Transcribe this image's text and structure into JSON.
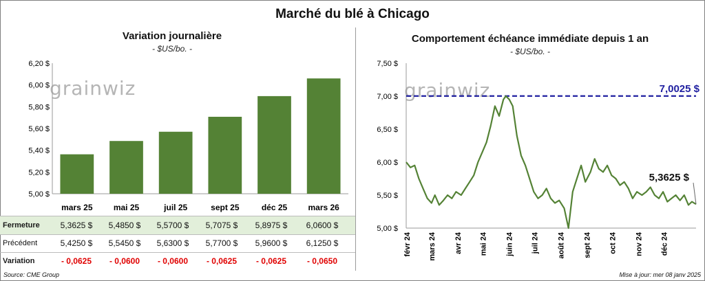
{
  "title": "Marché du blé à Chicago",
  "watermark": "grainwiz",
  "left_chart": {
    "title": "Variation journalière",
    "unit": "- $US/bo. -"
  },
  "right_chart": {
    "title": "Comportement échéance immédiate depuis 1 an",
    "unit": "- $US/bo. -",
    "max_label": "7,0025 $",
    "last_label": "5,3625 $"
  },
  "table": {
    "rows": [
      {
        "label": "Fermeture",
        "values": [
          "5,3625  $",
          "5,4850  $",
          "5,5700  $",
          "5,7075  $",
          "5,8975  $",
          "6,0600  $"
        ]
      },
      {
        "label": "Précédent",
        "values": [
          "5,4250  $",
          "5,5450  $",
          "5,6300  $",
          "5,7700  $",
          "5,9600  $",
          "6,1250  $"
        ]
      },
      {
        "label": "Variation",
        "values": [
          "- 0,0625",
          "- 0,0600",
          "- 0,0600",
          "- 0,0625",
          "- 0,0625",
          "- 0,0650"
        ]
      }
    ]
  },
  "footer": {
    "source": "Source: CME Group",
    "updated": "Mise à jour: mer 08 janv 2025"
  },
  "colors": {
    "bar": "#548235",
    "line": "#548235",
    "max_line": "#1f1fa0",
    "max_label": "#1f1fa0",
    "highlight_row": "#e2efda",
    "negative": "#e00000"
  },
  "chart_data": [
    {
      "type": "bar",
      "categories": [
        "mars 25",
        "mai 25",
        "juil 25",
        "sept 25",
        "déc 25",
        "mars 26"
      ],
      "values": [
        5.3625,
        5.485,
        5.57,
        5.7075,
        5.8975,
        6.06
      ],
      "ylim": [
        5.0,
        6.2
      ],
      "ytick_labels": [
        "5,00 $",
        "5,20 $",
        "5,40 $",
        "5,60 $",
        "5,80 $",
        "6,00 $",
        "6,20 $"
      ],
      "grid": false
    },
    {
      "type": "line",
      "x": [
        "2024-01-31",
        "2024-02-05",
        "2024-02-10",
        "2024-02-15",
        "2024-02-20",
        "2024-02-25",
        "2024-03-01",
        "2024-03-05",
        "2024-03-10",
        "2024-03-15",
        "2024-03-20",
        "2024-03-25",
        "2024-03-30",
        "2024-04-05",
        "2024-04-10",
        "2024-04-15",
        "2024-04-20",
        "2024-04-25",
        "2024-04-30",
        "2024-05-05",
        "2024-05-10",
        "2024-05-15",
        "2024-05-20",
        "2024-05-25",
        "2024-05-28",
        "2024-06-01",
        "2024-06-05",
        "2024-06-10",
        "2024-06-15",
        "2024-06-20",
        "2024-06-25",
        "2024-06-30",
        "2024-07-05",
        "2024-07-10",
        "2024-07-15",
        "2024-07-20",
        "2024-07-25",
        "2024-07-30",
        "2024-08-05",
        "2024-08-10",
        "2024-08-15",
        "2024-08-20",
        "2024-08-25",
        "2024-08-30",
        "2024-09-05",
        "2024-09-10",
        "2024-09-15",
        "2024-09-20",
        "2024-09-25",
        "2024-09-30",
        "2024-10-05",
        "2024-10-10",
        "2024-10-15",
        "2024-10-20",
        "2024-10-25",
        "2024-10-30",
        "2024-11-05",
        "2024-11-10",
        "2024-11-15",
        "2024-11-20",
        "2024-11-25",
        "2024-11-30",
        "2024-12-05",
        "2024-12-10",
        "2024-12-15",
        "2024-12-20",
        "2024-12-25",
        "2024-12-30",
        "2025-01-03",
        "2025-01-08"
      ],
      "values": [
        6.0,
        5.92,
        5.95,
        5.75,
        5.6,
        5.45,
        5.38,
        5.5,
        5.35,
        5.42,
        5.5,
        5.45,
        5.55,
        5.5,
        5.6,
        5.7,
        5.8,
        6.0,
        6.15,
        6.3,
        6.55,
        6.85,
        6.7,
        6.95,
        7.0025,
        6.95,
        6.85,
        6.4,
        6.1,
        5.95,
        5.75,
        5.55,
        5.45,
        5.5,
        5.6,
        5.45,
        5.38,
        5.42,
        5.3,
        5.0,
        5.55,
        5.75,
        5.95,
        5.7,
        5.85,
        6.05,
        5.9,
        5.85,
        5.95,
        5.8,
        5.75,
        5.65,
        5.7,
        5.6,
        5.45,
        5.55,
        5.5,
        5.55,
        5.62,
        5.5,
        5.45,
        5.55,
        5.4,
        5.45,
        5.5,
        5.42,
        5.5,
        5.35,
        5.4,
        5.3625
      ],
      "max_value": 7.0025,
      "last_value": 5.3625,
      "ylim": [
        5.0,
        7.5
      ],
      "ytick_labels": [
        "5,00 $",
        "5,50 $",
        "6,00 $",
        "6,50 $",
        "7,00 $",
        "7,50 $"
      ],
      "xtick_labels": [
        "févr 24",
        "mars 24",
        "avr 24",
        "mai 24",
        "juin 24",
        "juil 24",
        "août 24",
        "sept 24",
        "oct 24",
        "nov 24",
        "déc 24"
      ],
      "grid": false
    }
  ]
}
